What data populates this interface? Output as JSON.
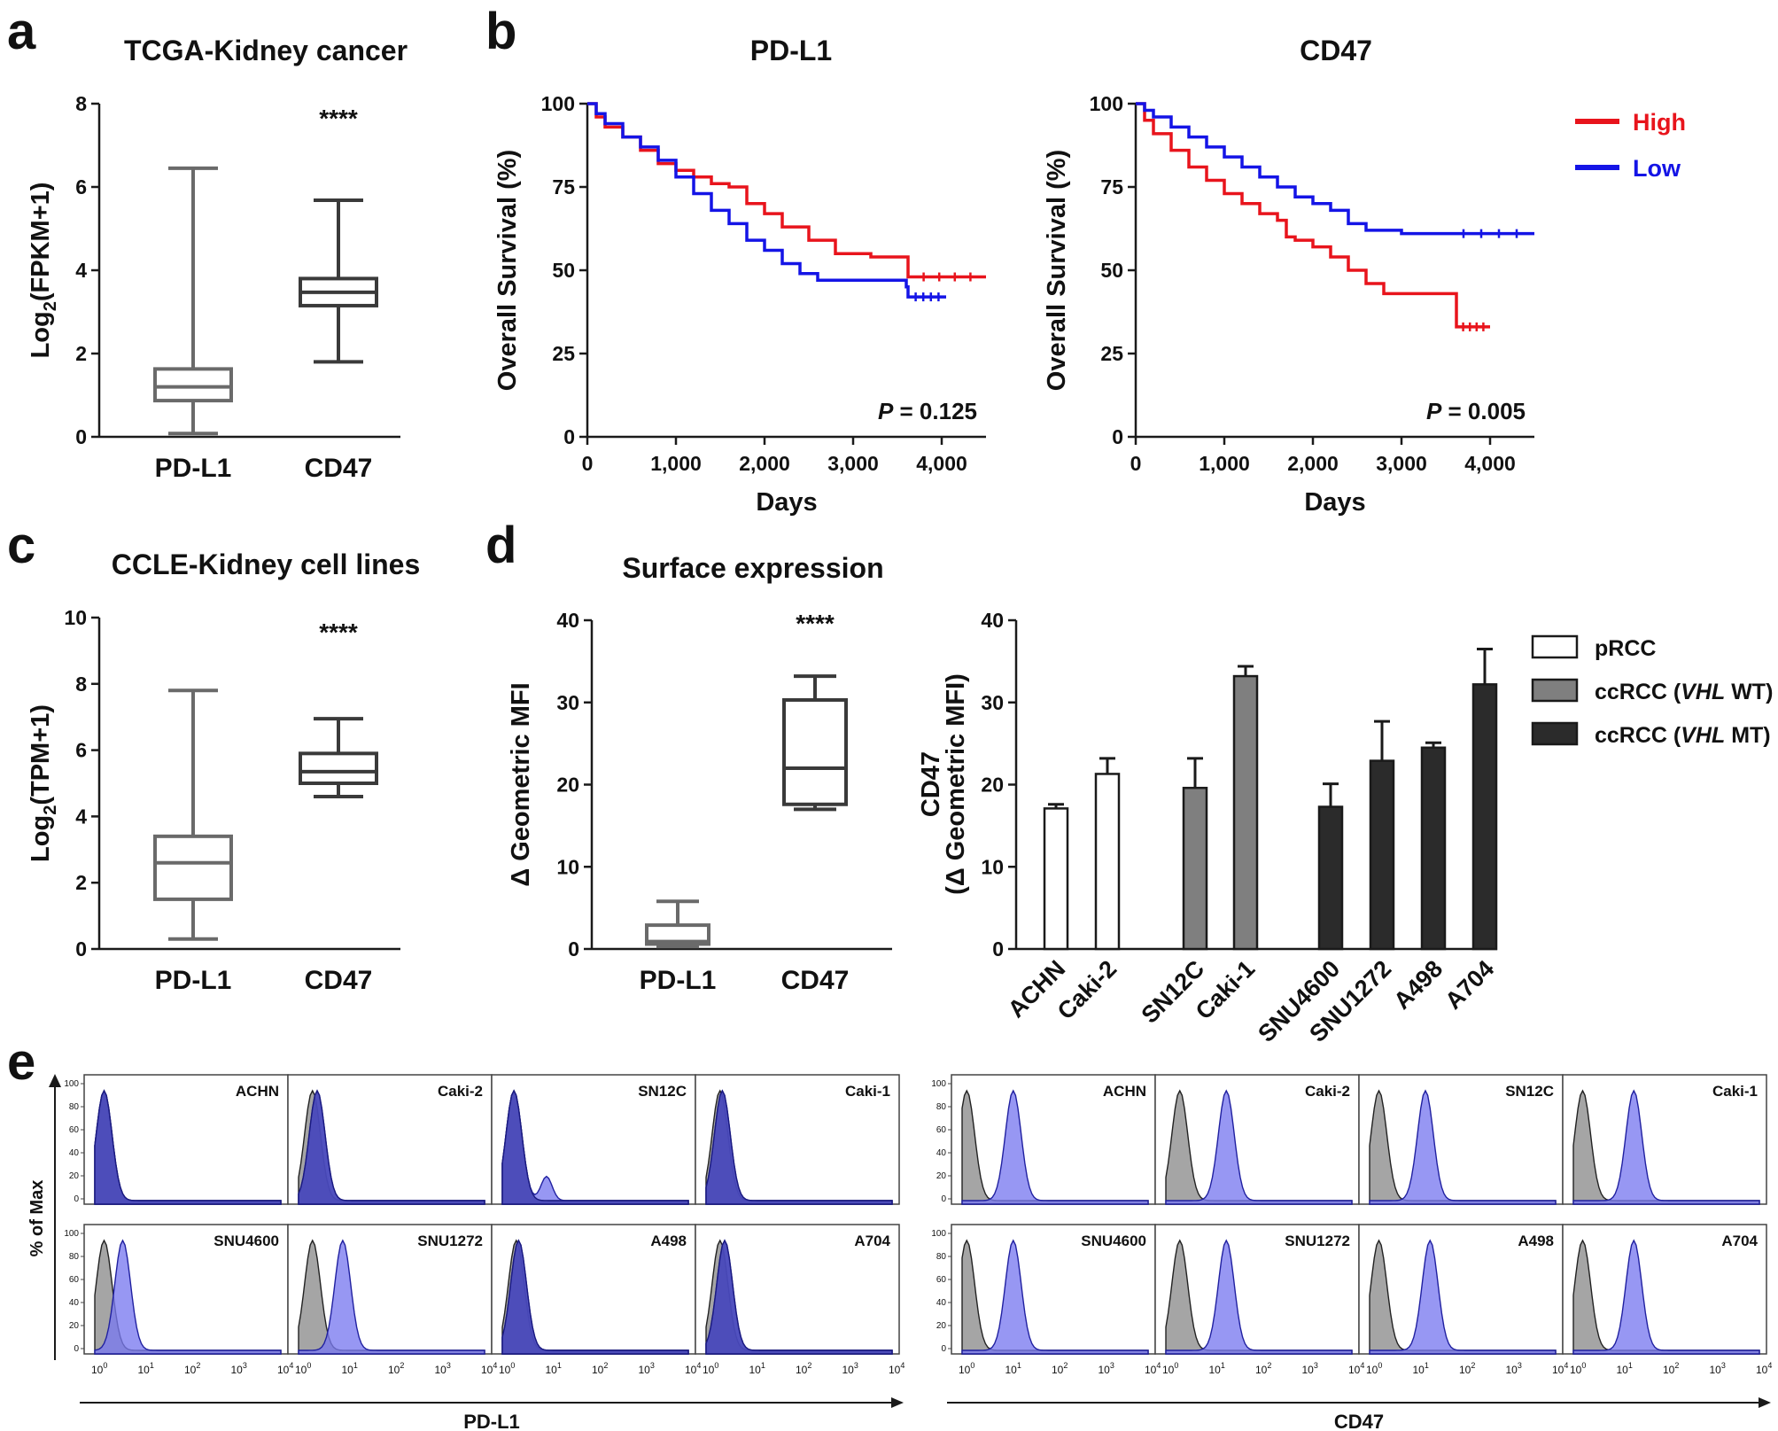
{
  "panel_letters": [
    "a",
    "b",
    "c",
    "d",
    "e"
  ],
  "chart_data": [
    {
      "id": "a",
      "type": "box",
      "title": "TCGA-Kidney cancer",
      "ylabel_main": "Log",
      "ylabel_sub": "2",
      "ylabel_rest": "(FPKM+1)",
      "yticks": [
        "0",
        "2",
        "4",
        "6",
        "8"
      ],
      "ylim": [
        0,
        8
      ],
      "categories": [
        "PD-L1",
        "CD47"
      ],
      "boxes": [
        {
          "min": 0.08,
          "q1": 0.87,
          "median": 1.2,
          "q3": 1.63,
          "max": 6.45,
          "color": "#6a6a6a"
        },
        {
          "min": 1.8,
          "q1": 3.15,
          "median": 3.47,
          "q3": 3.8,
          "max": 5.68,
          "color": "#3a3a3a"
        }
      ],
      "annotation": "****"
    },
    {
      "id": "b1",
      "type": "line",
      "title": "PD-L1",
      "xlabel": "Days",
      "ylabel": "Overall Survival (%)",
      "xticks": [
        "0",
        "1,000",
        "2,000",
        "3,000",
        "4,000"
      ],
      "yticks": [
        "0",
        "25",
        "50",
        "75",
        "100"
      ],
      "xlim": [
        0,
        4500
      ],
      "ylim": [
        0,
        100
      ],
      "p_label": "P",
      "p_text": " = 0.125",
      "series": [
        {
          "name": "High",
          "color": "#e8141c",
          "x": [
            0,
            100,
            200,
            400,
            600,
            800,
            1000,
            1200,
            1400,
            1600,
            1800,
            2000,
            2200,
            2500,
            2800,
            3200,
            3600,
            3620,
            4500
          ],
          "y": [
            100,
            96,
            93,
            90,
            86,
            82,
            80,
            78,
            76,
            75,
            70,
            67,
            63,
            59,
            55,
            54,
            54,
            48,
            48
          ]
        },
        {
          "name": "Low",
          "color": "#1414e6",
          "x": [
            0,
            100,
            200,
            400,
            600,
            800,
            1000,
            1200,
            1400,
            1600,
            1800,
            2000,
            2200,
            2400,
            2600,
            3000,
            3600,
            3620,
            4050
          ],
          "y": [
            100,
            97,
            94,
            90,
            87,
            83,
            78,
            73,
            68,
            64,
            59,
            56,
            52,
            49,
            47,
            47,
            45,
            42,
            42
          ]
        }
      ]
    },
    {
      "id": "b2",
      "type": "line",
      "title": "CD47",
      "xlabel": "Days",
      "ylabel": "Overall Survival (%)",
      "xticks": [
        "0",
        "1,000",
        "2,000",
        "3,000",
        "4,000"
      ],
      "yticks": [
        "0",
        "25",
        "50",
        "75",
        "100"
      ],
      "xlim": [
        0,
        4500
      ],
      "ylim": [
        0,
        100
      ],
      "p_label": "P",
      "p_text": " = 0.005",
      "legend": [
        {
          "label": "High",
          "color": "#e8141c"
        },
        {
          "label": "Low",
          "color": "#1414e6"
        }
      ],
      "series": [
        {
          "name": "High",
          "color": "#e8141c",
          "x": [
            0,
            100,
            200,
            400,
            600,
            800,
            1000,
            1200,
            1400,
            1600,
            1700,
            1800,
            2000,
            2200,
            2400,
            2600,
            2800,
            3200,
            3600,
            3620,
            4000
          ],
          "y": [
            100,
            95,
            91,
            86,
            81,
            77,
            73,
            70,
            67,
            65,
            60,
            59,
            57,
            54,
            50,
            46,
            43,
            43,
            43,
            33,
            33
          ]
        },
        {
          "name": "Low",
          "color": "#1414e6",
          "x": [
            0,
            100,
            200,
            400,
            600,
            800,
            1000,
            1200,
            1400,
            1600,
            1800,
            2000,
            2200,
            2400,
            2600,
            3000,
            3500,
            4500
          ],
          "y": [
            100,
            98,
            96,
            93,
            90,
            87,
            84,
            81,
            78,
            75,
            72,
            70,
            68,
            64,
            62,
            61,
            61,
            61
          ]
        }
      ]
    },
    {
      "id": "c",
      "type": "box",
      "title": "CCLE-Kidney cell lines",
      "ylabel_main": "Log",
      "ylabel_sub": "2",
      "ylabel_rest": "(TPM+1)",
      "yticks": [
        "0",
        "2",
        "4",
        "6",
        "8",
        "10"
      ],
      "ylim": [
        0,
        10
      ],
      "categories": [
        "PD-L1",
        "CD47"
      ],
      "boxes": [
        {
          "min": 0.3,
          "q1": 1.5,
          "median": 2.6,
          "q3": 3.4,
          "max": 7.8,
          "color": "#6a6a6a"
        },
        {
          "min": 4.6,
          "q1": 5.0,
          "median": 5.35,
          "q3": 5.9,
          "max": 6.95,
          "color": "#3a3a3a"
        }
      ],
      "annotation": "****"
    },
    {
      "id": "d1",
      "type": "box",
      "title": "Surface expression",
      "ylabel": "Δ Geometric MFI",
      "yticks": [
        "0",
        "10",
        "20",
        "30",
        "40"
      ],
      "ylim": [
        0,
        40
      ],
      "categories": [
        "PD-L1",
        "CD47"
      ],
      "boxes": [
        {
          "min": 0.3,
          "q1": 0.6,
          "median": 0.9,
          "q3": 2.9,
          "max": 5.8,
          "color": "#6a6a6a"
        },
        {
          "min": 17.0,
          "q1": 17.6,
          "median": 22.0,
          "q3": 30.3,
          "max": 33.2,
          "color": "#3a3a3a"
        }
      ],
      "annotation": "****"
    },
    {
      "id": "d2",
      "type": "bar",
      "ylabel_line1": "CD47",
      "ylabel_line2": "(Δ Geometric MFI)",
      "yticks": [
        "0",
        "10",
        "20",
        "30",
        "40"
      ],
      "ylim": [
        0,
        40
      ],
      "categories": [
        "ACHN",
        "Caki-2",
        "SN12C",
        "Caki-1",
        "SNU4600",
        "SNU1272",
        "A498",
        "A704"
      ],
      "values": [
        17.1,
        21.3,
        19.6,
        33.2,
        17.3,
        22.9,
        24.5,
        32.2
      ],
      "errors": [
        0.5,
        1.9,
        3.6,
        1.2,
        2.8,
        4.8,
        0.6,
        4.3
      ],
      "groups": [
        "pRCC",
        "pRCC",
        "ccRCC_wt",
        "ccRCC_wt",
        "ccRCC_mt",
        "ccRCC_mt",
        "ccRCC_mt",
        "ccRCC_mt"
      ],
      "legend": [
        {
          "key": "pRCC",
          "pre": "pRCC",
          "ital": "",
          "post": "",
          "color": "#ffffff"
        },
        {
          "key": "ccRCC_wt",
          "pre": "ccRCC (",
          "ital": "VHL",
          "post": " WT)",
          "color": "#7f7f7f"
        },
        {
          "key": "ccRCC_mt",
          "pre": "ccRCC (",
          "ital": "VHL",
          "post": " MT)",
          "color": "#2b2b2b"
        }
      ]
    },
    {
      "id": "e",
      "type": "histogram",
      "ylabel": "% of Max",
      "yticks": [
        "0",
        "20",
        "40",
        "60",
        "80",
        "100"
      ],
      "xtick_base": "10",
      "xtick_exps": [
        "0",
        "1",
        "2",
        "3",
        "4"
      ],
      "cell_lines": [
        "ACHN",
        "Caki-2",
        "SN12C",
        "Caki-1",
        "SNU4600",
        "SNU1272",
        "A498",
        "A704"
      ],
      "groups": [
        {
          "xlabel": "PD-L1",
          "isotype_peaks": [
            0.2,
            0.3,
            0.25,
            0.3,
            0.2,
            0.3,
            0.3,
            0.3
          ],
          "marker_peaks": [
            0.2,
            0.4,
            0.25,
            0.35,
            0.6,
            0.95,
            0.35,
            0.4
          ]
        },
        {
          "xlabel": "CD47",
          "isotype_peaks": [
            0.1,
            0.3,
            0.2,
            0.2,
            0.1,
            0.3,
            0.2,
            0.2
          ],
          "marker_peaks": [
            1.1,
            1.3,
            1.2,
            1.3,
            1.1,
            1.3,
            1.3,
            1.3
          ]
        }
      ],
      "colors": {
        "isotype": "#8c8c8c",
        "marker": "#7a7af0",
        "overlap": "#3d3db0"
      }
    }
  ]
}
